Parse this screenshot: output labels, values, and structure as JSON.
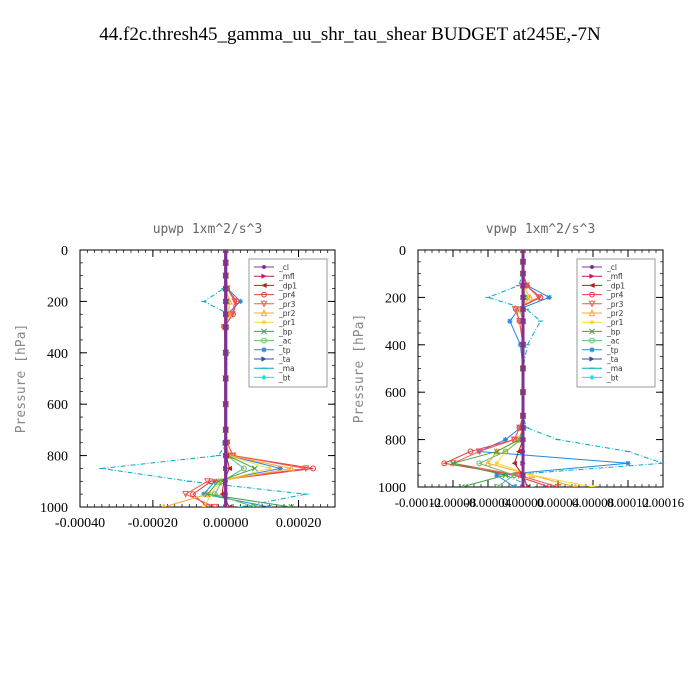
{
  "page": {
    "title": "44.f2c.thresh45_gamma_uu_shr_tau_shear  BUDGET at245E,-7N"
  },
  "legend_entries": [
    {
      "name": "_cl",
      "color": "#7b3294",
      "marker": "dot"
    },
    {
      "name": "_mfl",
      "color": "#c2185b",
      "marker": "tri-right"
    },
    {
      "name": "_dp1",
      "color": "#b71c1c",
      "marker": "tri-left"
    },
    {
      "name": "_pr4",
      "color": "#e53935",
      "marker": "circle"
    },
    {
      "name": "_pr3",
      "color": "#ff5252",
      "marker": "tri-down"
    },
    {
      "name": "_pr2",
      "color": "#ffa726",
      "marker": "tri-up"
    },
    {
      "name": "_pr1",
      "color": "#fdd835",
      "marker": "dot"
    },
    {
      "name": "_bp",
      "color": "#43a047",
      "marker": "x"
    },
    {
      "name": "_ac",
      "color": "#66bb6a",
      "marker": "circle"
    },
    {
      "name": "_tp",
      "color": "#1e88e5",
      "marker": "star"
    },
    {
      "name": "_ta",
      "color": "#3949ab",
      "marker": "tri-right"
    },
    {
      "name": "_ma",
      "color": "#00acc1",
      "marker": "dash"
    },
    {
      "name": "_bt",
      "color": "#00e5ff",
      "marker": "diamond"
    }
  ],
  "chart_data": [
    {
      "type": "line",
      "title": "upwp   1xm^2/s^3",
      "xlabel": "",
      "ylabel": "Pressure [hPa]",
      "xlim": [
        -0.0004,
        0.0003
      ],
      "ylim": [
        1000,
        0
      ],
      "x_ticks": [
        "-0.00040",
        "-0.00020",
        "0.00000",
        "0.00020"
      ],
      "x_tick_values": [
        -0.0004,
        -0.0002,
        0.0,
        0.0002
      ],
      "y_ticks": [
        "0",
        "200",
        "400",
        "600",
        "800",
        "1000"
      ],
      "y_tick_values": [
        0,
        200,
        400,
        600,
        800,
        1000
      ],
      "pressure": [
        0,
        50,
        100,
        150,
        200,
        250,
        300,
        400,
        500,
        600,
        700,
        750,
        800,
        850,
        900,
        950,
        1000
      ],
      "series": [
        {
          "name": "_ma",
          "values": [
            0,
            0,
            0,
            -5e-06,
            -6e-05,
            1e-05,
            -5e-06,
            5e-06,
            0,
            0,
            0,
            4e-06,
            -2e-05,
            -0.00034,
            -0.0001,
            0.00022,
            4e-05
          ]
        },
        {
          "name": "_tp",
          "values": [
            0,
            0,
            0,
            5e-06,
            4e-05,
            4e-06,
            3e-06,
            0.0,
            0,
            0,
            0,
            -3e-06,
            1e-05,
            0.00015,
            -3e-05,
            -6e-05,
            0.00012
          ]
        },
        {
          "name": "_pr4",
          "values": [
            0,
            0,
            0,
            4e-06,
            3e-05,
            2e-05,
            -4e-06,
            0,
            0,
            0,
            0,
            4e-06,
            2e-05,
            0.00024,
            -4e-05,
            -9e-05,
            -5e-05
          ]
        },
        {
          "name": "_pr3",
          "values": [
            0,
            0,
            0,
            4e-06,
            2.5e-05,
            1.8e-05,
            -4e-06,
            0,
            0,
            0,
            0,
            4e-06,
            2e-05,
            0.00022,
            -5e-05,
            -0.00011,
            -3e-05
          ]
        },
        {
          "name": "_pr2",
          "values": [
            0,
            0,
            0,
            0,
            1e-05,
            8e-06,
            0,
            0,
            0,
            0,
            0,
            0,
            1e-05,
            0.00018,
            -2e-05,
            -5e-05,
            -0.00017
          ]
        },
        {
          "name": "_pr1",
          "values": [
            0,
            0,
            0,
            0,
            4e-06,
            3e-06,
            0,
            0,
            0,
            0,
            0,
            0,
            6e-06,
            0.00012,
            -1.5e-05,
            -4e-05,
            -6e-05
          ]
        },
        {
          "name": "_bp",
          "values": [
            0,
            0,
            0,
            0,
            2e-06,
            0,
            0,
            0,
            0,
            0,
            0,
            0,
            6e-06,
            8e-05,
            -2e-05,
            -5e-05,
            0.00018
          ]
        },
        {
          "name": "_ac",
          "values": [
            0,
            0,
            0,
            0,
            2e-06,
            0,
            0,
            0,
            0,
            0,
            0,
            0,
            4e-06,
            5e-05,
            -1e-05,
            -3e-05,
            8e-05
          ]
        },
        {
          "name": "_dp1",
          "values": [
            0,
            0,
            0,
            0,
            0,
            0,
            0,
            0,
            0,
            0,
            0,
            0,
            2e-06,
            1e-05,
            -5e-06,
            -1e-05,
            1e-05
          ]
        },
        {
          "name": "_ta",
          "values": [
            0,
            0,
            0,
            0,
            0,
            0,
            0,
            0,
            0,
            0,
            0,
            0,
            0,
            0,
            0,
            0,
            0
          ]
        },
        {
          "name": "_mfl",
          "values": [
            0,
            0,
            0,
            0,
            0,
            0,
            0,
            0,
            0,
            0,
            0,
            0,
            0,
            0,
            0,
            0,
            0
          ]
        },
        {
          "name": "_bt",
          "values": [
            0,
            0,
            0,
            0,
            0,
            0,
            0,
            0,
            0,
            0,
            0,
            0,
            0,
            0,
            0,
            0,
            0
          ]
        },
        {
          "name": "_cl",
          "values": [
            0,
            0,
            0,
            0,
            0,
            0,
            0,
            0,
            0,
            0,
            0,
            0,
            0,
            0,
            0,
            0,
            0
          ]
        }
      ],
      "legend_position": "top-right",
      "grid": false
    },
    {
      "type": "line",
      "title": "vpwp   1xm^2/s^3",
      "xlabel": "",
      "ylabel": "Pressure [hPa]",
      "xlim": [
        -0.00012,
        0.00016
      ],
      "ylim": [
        1000,
        0
      ],
      "x_ticks": [
        "-0.00012",
        "-0.00008",
        "-0.00004",
        "0.00000",
        "0.00004",
        "0.00008",
        "0.00012",
        "0.00016"
      ],
      "x_tick_values": [
        -0.00012,
        -8e-05,
        -4e-05,
        0.0,
        4e-05,
        8e-05,
        0.00012,
        0.00016
      ],
      "y_ticks": [
        "0",
        "200",
        "400",
        "600",
        "800",
        "1000"
      ],
      "y_tick_values": [
        0,
        200,
        400,
        600,
        800,
        1000
      ],
      "pressure": [
        0,
        50,
        100,
        150,
        200,
        250,
        300,
        400,
        500,
        600,
        700,
        750,
        800,
        850,
        900,
        950,
        1000
      ],
      "series": [
        {
          "name": "_ma",
          "values": [
            0,
            0,
            0,
            -5e-06,
            -4e-05,
            4e-06,
            2e-05,
            5e-06,
            0,
            0,
            0,
            4e-06,
            4e-05,
            0.00012,
            0.00016,
            -2e-05,
            1e-05
          ]
        },
        {
          "name": "_tp",
          "values": [
            0,
            0,
            0,
            5e-06,
            3e-05,
            -5e-06,
            -1.5e-05,
            -3e-06,
            0,
            0,
            0,
            -3e-06,
            -2e-05,
            -5e-05,
            0.00012,
            -3e-05,
            -1e-05
          ]
        },
        {
          "name": "_pr4",
          "values": [
            0,
            0,
            0,
            4e-06,
            2e-05,
            -8e-06,
            -4e-06,
            0,
            0,
            0,
            0,
            -4e-06,
            -1e-05,
            -6e-05,
            -9e-05,
            -1e-05,
            3e-05
          ]
        },
        {
          "name": "_pr3",
          "values": [
            0,
            0,
            0,
            4e-06,
            1.8e-05,
            -9e-06,
            -4e-06,
            0,
            0,
            0,
            0,
            -4e-06,
            -1e-05,
            -5e-05,
            -8e-05,
            -5e-06,
            4e-05
          ]
        },
        {
          "name": "_pr2",
          "values": [
            0,
            0,
            0,
            0,
            8e-06,
            -4e-06,
            0,
            0,
            0,
            0,
            0,
            0,
            -5e-06,
            -3e-05,
            -4e-05,
            1e-05,
            6e-05
          ]
        },
        {
          "name": "_pr1",
          "values": [
            0,
            0,
            0,
            0,
            4e-06,
            -2e-06,
            0,
            0,
            0,
            0,
            0,
            0,
            -3e-06,
            -2e-05,
            -3e-05,
            1e-05,
            8e-05
          ]
        },
        {
          "name": "_bp",
          "values": [
            0,
            0,
            0,
            0,
            2e-06,
            0,
            0,
            0,
            0,
            0,
            0,
            0,
            -4e-06,
            -3e-05,
            -8e-05,
            -2e-05,
            -7e-05
          ]
        },
        {
          "name": "_ac",
          "values": [
            0,
            0,
            0,
            0,
            2e-06,
            0,
            0,
            0,
            0,
            0,
            0,
            0,
            -2e-06,
            -2e-05,
            -5e-05,
            -1e-05,
            -3e-05
          ]
        },
        {
          "name": "_dp1",
          "values": [
            0,
            0,
            0,
            0,
            0,
            0,
            0,
            0,
            0,
            0,
            0,
            0,
            0,
            -5e-06,
            -1e-05,
            0,
            5e-06
          ]
        },
        {
          "name": "_ta",
          "values": [
            0,
            0,
            0,
            0,
            0,
            0,
            0,
            0,
            0,
            0,
            0,
            0,
            0,
            0,
            0,
            0,
            0
          ]
        },
        {
          "name": "_mfl",
          "values": [
            0,
            0,
            0,
            0,
            0,
            0,
            0,
            0,
            0,
            0,
            0,
            0,
            0,
            0,
            0,
            0,
            0
          ]
        },
        {
          "name": "_bt",
          "values": [
            0,
            0,
            0,
            0,
            0,
            0,
            0,
            0,
            0,
            0,
            0,
            0,
            0,
            0,
            0,
            0,
            0
          ]
        },
        {
          "name": "_cl",
          "values": [
            0,
            0,
            0,
            0,
            0,
            0,
            0,
            0,
            0,
            0,
            0,
            0,
            0,
            0,
            0,
            0,
            0
          ]
        }
      ],
      "legend_position": "top-right",
      "grid": false
    }
  ]
}
